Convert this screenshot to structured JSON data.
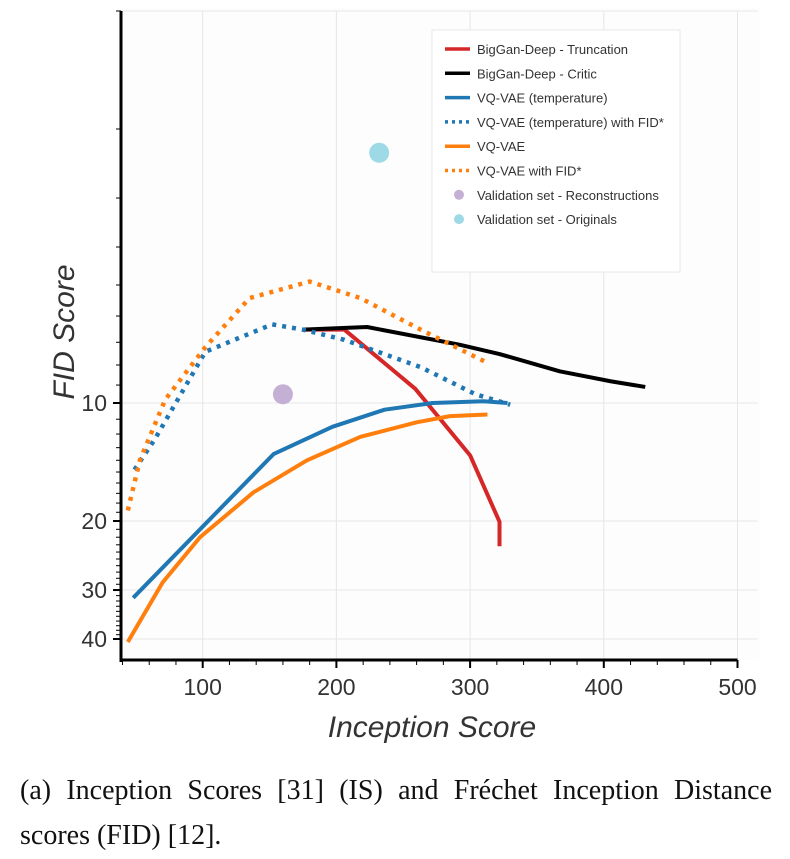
{
  "chart_data": {
    "type": "line",
    "xlabel": "Inception Score",
    "ylabel": "FID Score",
    "xlim": [
      39,
      500
    ],
    "ylim": [
      1,
      45
    ],
    "y_scale": "log",
    "y_inverted": true,
    "x_ticks": [
      100,
      200,
      300,
      400,
      500
    ],
    "y_ticks": [
      10,
      20,
      30,
      40
    ],
    "grid": true,
    "legend_position": "top-right",
    "series": [
      {
        "name": "BigGan-Deep - Truncation",
        "color": "#d62728",
        "style": "solid",
        "x": [
          175,
          206,
          259,
          300,
          322,
          322
        ],
        "y": [
          6.5,
          6.5,
          9.2,
          13.6,
          20.1,
          23.2
        ]
      },
      {
        "name": "BigGan-Deep - Critic",
        "color": "#000000",
        "style": "solid",
        "x": [
          175,
          223,
          292,
          322,
          367,
          405,
          431
        ],
        "y": [
          6.5,
          6.4,
          7.1,
          7.5,
          8.3,
          8.8,
          9.1
        ]
      },
      {
        "name": "VQ-VAE (temperature)",
        "color": "#1f77b4",
        "style": "solid",
        "x": [
          48,
          153,
          197,
          236,
          272,
          310,
          328
        ],
        "y": [
          31.4,
          13.5,
          11.5,
          10.4,
          10.0,
          9.9,
          10.0
        ]
      },
      {
        "name": "VQ-VAE (temperature) with FID*",
        "color": "#1f77b4",
        "style": "dotted",
        "x": [
          49,
          64,
          102,
          152,
          175,
          206,
          263,
          304,
          330
        ],
        "y": [
          14.8,
          12.4,
          7.4,
          6.3,
          6.5,
          6.9,
          8.1,
          9.5,
          10.1
        ]
      },
      {
        "name": "VQ-VAE",
        "color": "#ff7f0e",
        "style": "solid",
        "x": [
          44,
          70,
          98,
          138,
          178,
          218,
          260,
          285,
          313
        ],
        "y": [
          40.7,
          28.7,
          22.0,
          16.9,
          14.0,
          12.2,
          11.2,
          10.8,
          10.7
        ]
      },
      {
        "name": "VQ-VAE with FID*",
        "color": "#ff7f0e",
        "style": "dotted",
        "x": [
          44,
          53,
          72,
          102,
          135,
          180,
          218,
          263,
          313
        ],
        "y": [
          18.8,
          14.0,
          9.8,
          7.2,
          5.4,
          4.9,
          5.4,
          6.5,
          7.9
        ]
      },
      {
        "name": "Validation set - Reconstructions",
        "color": "#c5b0d5",
        "style": "marker",
        "x": [
          160
        ],
        "y": [
          9.5
        ]
      },
      {
        "name": "Validation set - Originals",
        "color": "#9edae5",
        "style": "marker",
        "x": [
          232
        ],
        "y": [
          2.3
        ]
      }
    ]
  },
  "caption": "(a) Inception Scores [31] (IS) and Fréchet Inception Distance scores (FID) [12]."
}
